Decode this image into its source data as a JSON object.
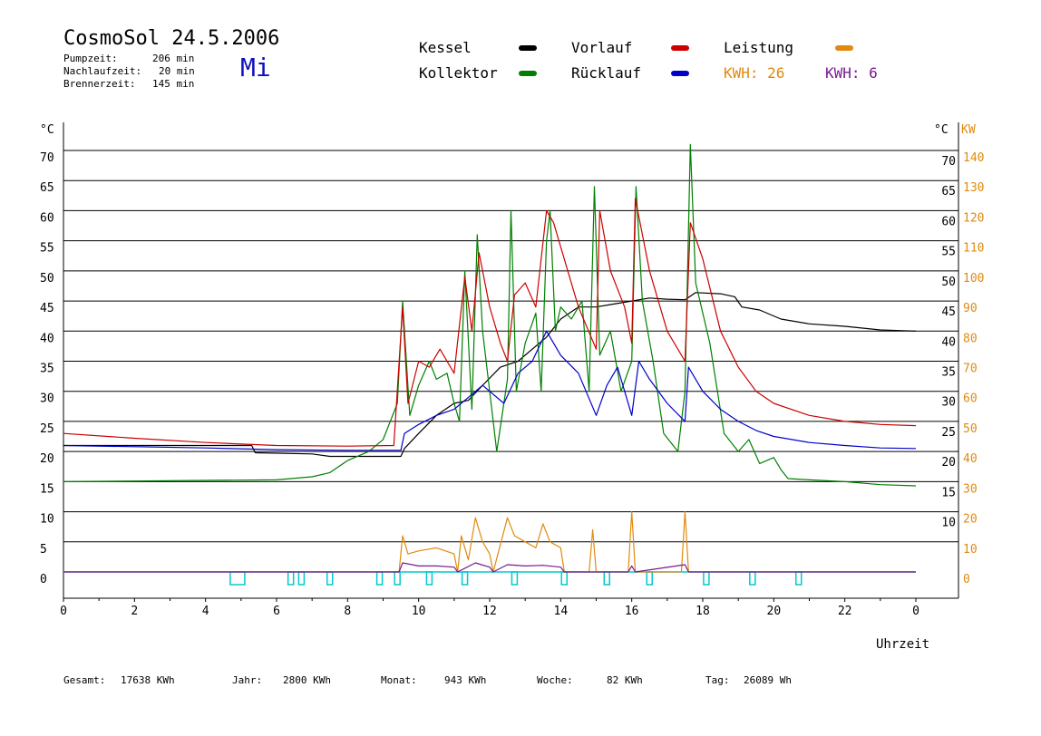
{
  "header": {
    "title": "CosmoSol 24.5.2006",
    "day": "Mi",
    "stats": [
      {
        "label": "Pumpzeit:",
        "value": "206 min"
      },
      {
        "label": "Nachlaufzeit:",
        "value": "20 min"
      },
      {
        "label": "Brennerzeit:",
        "value": "145 min"
      }
    ]
  },
  "legend": {
    "kessel": "Kessel",
    "kollektor": "Kollektor",
    "vorlauf": "Vorlauf",
    "ruecklauf": "Rücklauf",
    "leistung": "Leistung",
    "kwh1": "KWH: 26",
    "kwh2": "KWH: 6"
  },
  "axes": {
    "left_unit": "°C",
    "right_unit_c": "°C",
    "right_unit_kw": "KW",
    "xlabel": "Uhrzeit"
  },
  "footer": [
    {
      "label": "Gesamt:",
      "value": "17638 KWh"
    },
    {
      "label": "Jahr:",
      "value": "2800 KWh"
    },
    {
      "label": "Monat:",
      "value": "943 KWh"
    },
    {
      "label": "Woche:",
      "value": "82 KWh"
    },
    {
      "label": "Tag:",
      "value": "26089 Wh"
    }
  ],
  "colors": {
    "kessel": "#000000",
    "kollektor": "#008000",
    "vorlauf": "#cc0000",
    "ruecklauf": "#0000cc",
    "leistung": "#e08a10",
    "kwh2": "#7a1a90",
    "pump": "#00c8d0"
  },
  "chart_data": {
    "type": "line",
    "xlabel": "Uhrzeit",
    "xlim": [
      0,
      24
    ],
    "ylim": [
      0,
      70
    ],
    "x_ticks": [
      "0",
      "2",
      "4",
      "6",
      "8",
      "10",
      "12",
      "14",
      "16",
      "18",
      "20",
      "22",
      "0"
    ],
    "left_ticks": [
      "0",
      "5",
      "10",
      "15",
      "20",
      "25",
      "30",
      "35",
      "40",
      "45",
      "50",
      "55",
      "60",
      "65",
      "70"
    ],
    "right_ticks_c": [
      "10",
      "15",
      "20",
      "25",
      "30",
      "35",
      "40",
      "45",
      "50",
      "55",
      "60",
      "65",
      "70"
    ],
    "right_ticks_kw": [
      "0",
      "10",
      "20",
      "30",
      "40",
      "50",
      "60",
      "70",
      "80",
      "90",
      "100",
      "110",
      "120",
      "130",
      "140"
    ],
    "series": [
      {
        "name": "Kessel",
        "color": "#000000",
        "points": [
          [
            0,
            21
          ],
          [
            5.3,
            21
          ],
          [
            5.4,
            19.8
          ],
          [
            7,
            19.6
          ],
          [
            7.5,
            19.2
          ],
          [
            9.5,
            19.2
          ],
          [
            9.6,
            20.5
          ],
          [
            10,
            23
          ],
          [
            10.5,
            26
          ],
          [
            11,
            28
          ],
          [
            11.4,
            28.5
          ],
          [
            11.8,
            31
          ],
          [
            12.3,
            34
          ],
          [
            12.8,
            35
          ],
          [
            13.2,
            37
          ],
          [
            13.6,
            39
          ],
          [
            14,
            42
          ],
          [
            14.5,
            44
          ],
          [
            15,
            44
          ],
          [
            15.5,
            44.5
          ],
          [
            16,
            45
          ],
          [
            16.5,
            45.5
          ],
          [
            17,
            45.3
          ],
          [
            17.5,
            45.2
          ],
          [
            17.8,
            46.4
          ],
          [
            18.5,
            46.2
          ],
          [
            18.9,
            45.7
          ],
          [
            19.1,
            44
          ],
          [
            19.6,
            43.5
          ],
          [
            20.2,
            42
          ],
          [
            21,
            41.2
          ],
          [
            22,
            40.8
          ],
          [
            23,
            40.2
          ],
          [
            24,
            40
          ]
        ]
      },
      {
        "name": "Kollektor",
        "color": "#008000",
        "points": [
          [
            0,
            15
          ],
          [
            2,
            15.1
          ],
          [
            4,
            15.2
          ],
          [
            6,
            15.3
          ],
          [
            7,
            15.8
          ],
          [
            7.5,
            16.5
          ],
          [
            8,
            18.5
          ],
          [
            8.6,
            20
          ],
          [
            9,
            22
          ],
          [
            9.4,
            28
          ],
          [
            9.55,
            45
          ],
          [
            9.75,
            26
          ],
          [
            10,
            31
          ],
          [
            10.3,
            35
          ],
          [
            10.5,
            32
          ],
          [
            10.8,
            33
          ],
          [
            11,
            28
          ],
          [
            11.15,
            25
          ],
          [
            11.3,
            50
          ],
          [
            11.5,
            27
          ],
          [
            11.65,
            56
          ],
          [
            11.8,
            40
          ],
          [
            12,
            30
          ],
          [
            12.2,
            20
          ],
          [
            12.5,
            32
          ],
          [
            12.6,
            60
          ],
          [
            12.75,
            30
          ],
          [
            13,
            38
          ],
          [
            13.3,
            43
          ],
          [
            13.45,
            30
          ],
          [
            13.6,
            55
          ],
          [
            13.7,
            60
          ],
          [
            13.85,
            40
          ],
          [
            14,
            44
          ],
          [
            14.3,
            42
          ],
          [
            14.6,
            45
          ],
          [
            14.8,
            30
          ],
          [
            14.95,
            64
          ],
          [
            15.1,
            36
          ],
          [
            15.4,
            40
          ],
          [
            15.7,
            30
          ],
          [
            16,
            35
          ],
          [
            16.12,
            64
          ],
          [
            16.3,
            45
          ],
          [
            16.6,
            35
          ],
          [
            16.9,
            23
          ],
          [
            17.3,
            20
          ],
          [
            17.5,
            30
          ],
          [
            17.65,
            71
          ],
          [
            17.8,
            48
          ],
          [
            18.2,
            38
          ],
          [
            18.6,
            23
          ],
          [
            19,
            20
          ],
          [
            19.3,
            22
          ],
          [
            19.6,
            18
          ],
          [
            20,
            19
          ],
          [
            20.2,
            17
          ],
          [
            20.4,
            15.5
          ],
          [
            21,
            15.3
          ],
          [
            22,
            15
          ],
          [
            23,
            14.5
          ],
          [
            24,
            14.3
          ]
        ]
      },
      {
        "name": "Vorlauf",
        "color": "#cc0000",
        "points": [
          [
            0,
            23
          ],
          [
            2,
            22.2
          ],
          [
            4,
            21.5
          ],
          [
            6,
            21
          ],
          [
            8,
            20.9
          ],
          [
            9.3,
            21
          ],
          [
            9.55,
            44
          ],
          [
            9.7,
            28
          ],
          [
            10,
            35
          ],
          [
            10.3,
            34
          ],
          [
            10.6,
            37
          ],
          [
            11,
            33
          ],
          [
            11.3,
            49
          ],
          [
            11.5,
            40
          ],
          [
            11.7,
            53
          ],
          [
            12,
            44
          ],
          [
            12.3,
            38
          ],
          [
            12.5,
            35
          ],
          [
            12.7,
            46
          ],
          [
            13,
            48
          ],
          [
            13.3,
            44
          ],
          [
            13.6,
            60
          ],
          [
            13.8,
            58
          ],
          [
            14,
            54
          ],
          [
            14.5,
            44
          ],
          [
            15,
            37
          ],
          [
            15.1,
            60
          ],
          [
            15.4,
            50
          ],
          [
            15.8,
            44
          ],
          [
            16,
            38
          ],
          [
            16.1,
            62
          ],
          [
            16.5,
            50
          ],
          [
            17,
            40
          ],
          [
            17.5,
            35
          ],
          [
            17.65,
            58
          ],
          [
            18,
            52
          ],
          [
            18.5,
            40
          ],
          [
            19,
            34
          ],
          [
            19.5,
            30
          ],
          [
            20,
            28
          ],
          [
            21,
            26
          ],
          [
            22,
            25
          ],
          [
            23,
            24.5
          ],
          [
            24,
            24.3
          ]
        ]
      },
      {
        "name": "Rücklauf",
        "color": "#0000cc",
        "points": [
          [
            0,
            21
          ],
          [
            2,
            20.8
          ],
          [
            4,
            20.6
          ],
          [
            6,
            20.3
          ],
          [
            8,
            20.2
          ],
          [
            9.5,
            20.2
          ],
          [
            9.6,
            23
          ],
          [
            10,
            24.5
          ],
          [
            10.5,
            26
          ],
          [
            11,
            27
          ],
          [
            11.4,
            29
          ],
          [
            11.8,
            31
          ],
          [
            12,
            30
          ],
          [
            12.4,
            28
          ],
          [
            12.8,
            33
          ],
          [
            13.2,
            35
          ],
          [
            13.6,
            40
          ],
          [
            14,
            36
          ],
          [
            14.5,
            33
          ],
          [
            15,
            26
          ],
          [
            15.3,
            31
          ],
          [
            15.6,
            34
          ],
          [
            16,
            26
          ],
          [
            16.2,
            35
          ],
          [
            16.5,
            32
          ],
          [
            17,
            28
          ],
          [
            17.5,
            25
          ],
          [
            17.6,
            34
          ],
          [
            18,
            30
          ],
          [
            18.5,
            27
          ],
          [
            19,
            25
          ],
          [
            19.5,
            23.5
          ],
          [
            20,
            22.5
          ],
          [
            21,
            21.5
          ],
          [
            22,
            21
          ],
          [
            23,
            20.6
          ],
          [
            24,
            20.5
          ]
        ]
      },
      {
        "name": "Leistung",
        "color": "#e08a10",
        "points": [
          [
            0,
            0
          ],
          [
            9.45,
            0
          ],
          [
            9.55,
            6
          ],
          [
            9.7,
            3
          ],
          [
            10,
            3.5
          ],
          [
            10.5,
            4
          ],
          [
            11,
            3
          ],
          [
            11.1,
            0
          ],
          [
            11.2,
            6
          ],
          [
            11.4,
            2
          ],
          [
            11.6,
            9
          ],
          [
            11.8,
            5
          ],
          [
            12,
            3
          ],
          [
            12.1,
            0
          ],
          [
            12.5,
            9
          ],
          [
            12.7,
            6
          ],
          [
            13,
            5
          ],
          [
            13.3,
            4
          ],
          [
            13.5,
            8
          ],
          [
            13.7,
            5
          ],
          [
            14,
            4
          ],
          [
            14.1,
            0
          ],
          [
            14.8,
            0
          ],
          [
            14.9,
            7
          ],
          [
            15.0,
            0
          ],
          [
            15.9,
            0
          ],
          [
            16.0,
            10
          ],
          [
            16.1,
            0
          ],
          [
            17.4,
            0
          ],
          [
            17.5,
            10
          ],
          [
            17.6,
            0
          ],
          [
            24,
            0
          ]
        ]
      },
      {
        "name": "KWH 6",
        "color": "#7a1a90",
        "points": [
          [
            0,
            0
          ],
          [
            9.45,
            0
          ],
          [
            9.55,
            1.5
          ],
          [
            10,
            1
          ],
          [
            10.5,
            1
          ],
          [
            11,
            0.8
          ],
          [
            11.1,
            0
          ],
          [
            11.6,
            1.5
          ],
          [
            12,
            0.8
          ],
          [
            12.1,
            0
          ],
          [
            12.5,
            1.2
          ],
          [
            13,
            1
          ],
          [
            13.5,
            1.1
          ],
          [
            14,
            0.8
          ],
          [
            14.1,
            0
          ],
          [
            15.9,
            0
          ],
          [
            16,
            1
          ],
          [
            16.1,
            0
          ],
          [
            17.5,
            1.2
          ],
          [
            17.6,
            0
          ],
          [
            24,
            0
          ]
        ]
      }
    ],
    "pump_markers": [
      4.9,
      6.4,
      6.7,
      7.5,
      8.9,
      9.4,
      10.3,
      11.3,
      12.7,
      14.1,
      15.3,
      16.5,
      18.1,
      19.4,
      20.7
    ]
  }
}
